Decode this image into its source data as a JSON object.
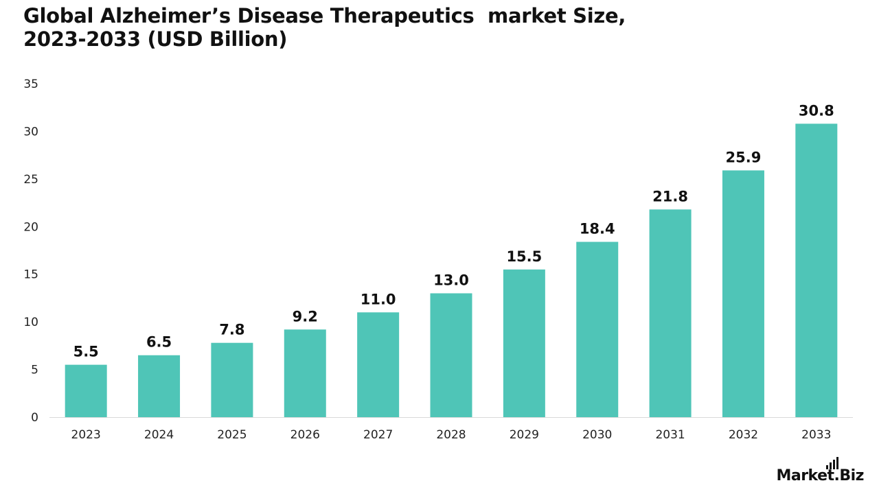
{
  "title_line1": "Global Alzheimer’s Disease Therapeutics  market Size,",
  "title_line2": "2023-2033 (USD Billion)",
  "brand": "Market.Biz",
  "colors": {
    "bar": "#4fc5b7",
    "axis": "#d9d9d9",
    "text": "#111111"
  },
  "chart_data": {
    "type": "bar",
    "categories": [
      "2023",
      "2024",
      "2025",
      "2026",
      "2027",
      "2028",
      "2029",
      "2030",
      "2031",
      "2032",
      "2033"
    ],
    "values": [
      5.5,
      6.5,
      7.8,
      9.2,
      11.0,
      13.0,
      15.5,
      18.4,
      21.8,
      25.9,
      30.8
    ],
    "value_labels": [
      "5.5",
      "6.5",
      "7.8",
      "9.2",
      "11.0",
      "13.0",
      "15.5",
      "18.4",
      "21.8",
      "25.9",
      "30.8"
    ],
    "ylim": [
      0,
      35
    ],
    "yticks": [
      "0",
      "5",
      "10",
      "15",
      "20",
      "25",
      "30",
      "35"
    ],
    "grid": false,
    "legend": "none"
  }
}
